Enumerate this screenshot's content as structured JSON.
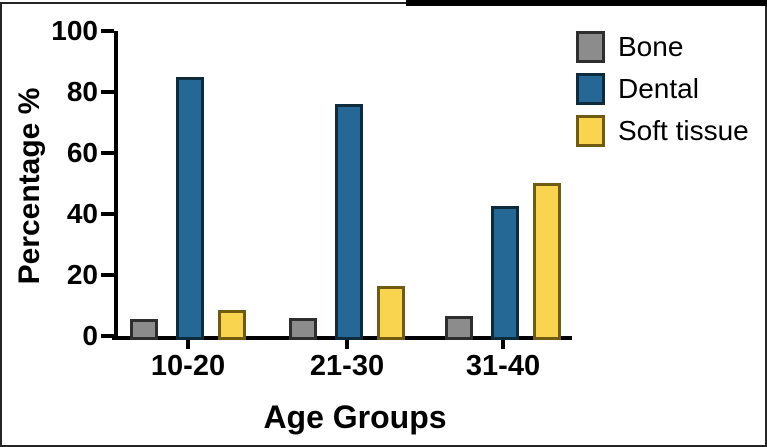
{
  "chart_data": {
    "type": "bar",
    "title": "",
    "xlabel": "Age Groups",
    "ylabel": "Percentage %",
    "categories": [
      "10-20",
      "21-30",
      "31-40"
    ],
    "series": [
      {
        "name": "Bone",
        "values": [
          5.5,
          6.0,
          6.5
        ],
        "fill": "#8C8C8C",
        "border": "#2E2E2E"
      },
      {
        "name": "Dental",
        "values": [
          85,
          76,
          42.5
        ],
        "fill": "#256795",
        "border": "#0D2B3A"
      },
      {
        "name": "Soft tissue",
        "values": [
          8.5,
          16.5,
          50
        ],
        "fill": "#F9D44F",
        "border": "#6F5B12"
      }
    ],
    "ylim": [
      0,
      100
    ],
    "yticks": [
      0,
      20,
      40,
      60,
      80,
      100
    ],
    "grid": false,
    "legend_position": "upper-right"
  },
  "colors": {
    "axis": "#000000",
    "text": "#000000",
    "frame_border": "#242424",
    "top_bar": "#000000",
    "background": "#FFFFFF"
  }
}
